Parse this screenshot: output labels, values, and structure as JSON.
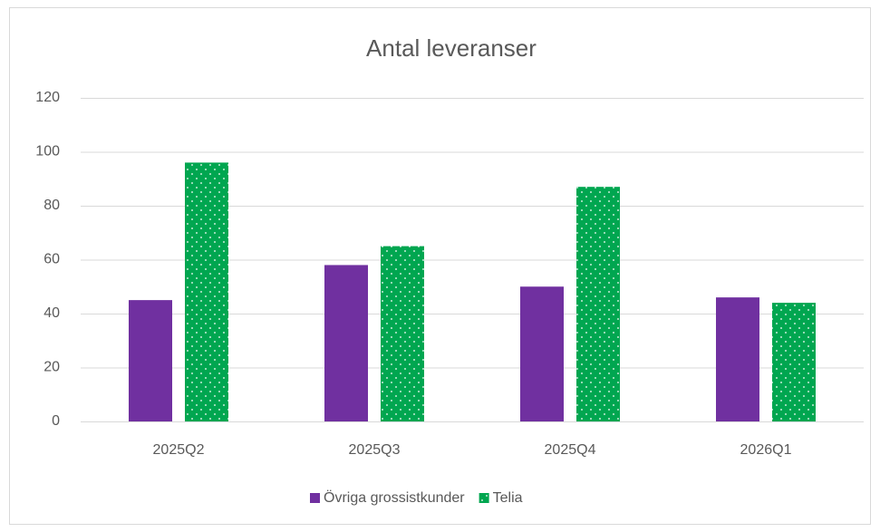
{
  "chart_data": {
    "type": "bar",
    "title": "Antal leveranser",
    "categories": [
      "2025Q2",
      "2025Q3",
      "2025Q4",
      "2026Q1"
    ],
    "series": [
      {
        "name": "Övriga grossistkunder",
        "color": "#7030a0",
        "values": [
          45,
          58,
          50,
          46
        ]
      },
      {
        "name": "Telia",
        "color": "#00a650",
        "values": [
          96,
          65,
          87,
          44
        ]
      }
    ],
    "ylim": [
      0,
      120
    ],
    "yticks": [
      0,
      20,
      40,
      60,
      80,
      100,
      120
    ],
    "grid": true,
    "legend": "bottom"
  }
}
